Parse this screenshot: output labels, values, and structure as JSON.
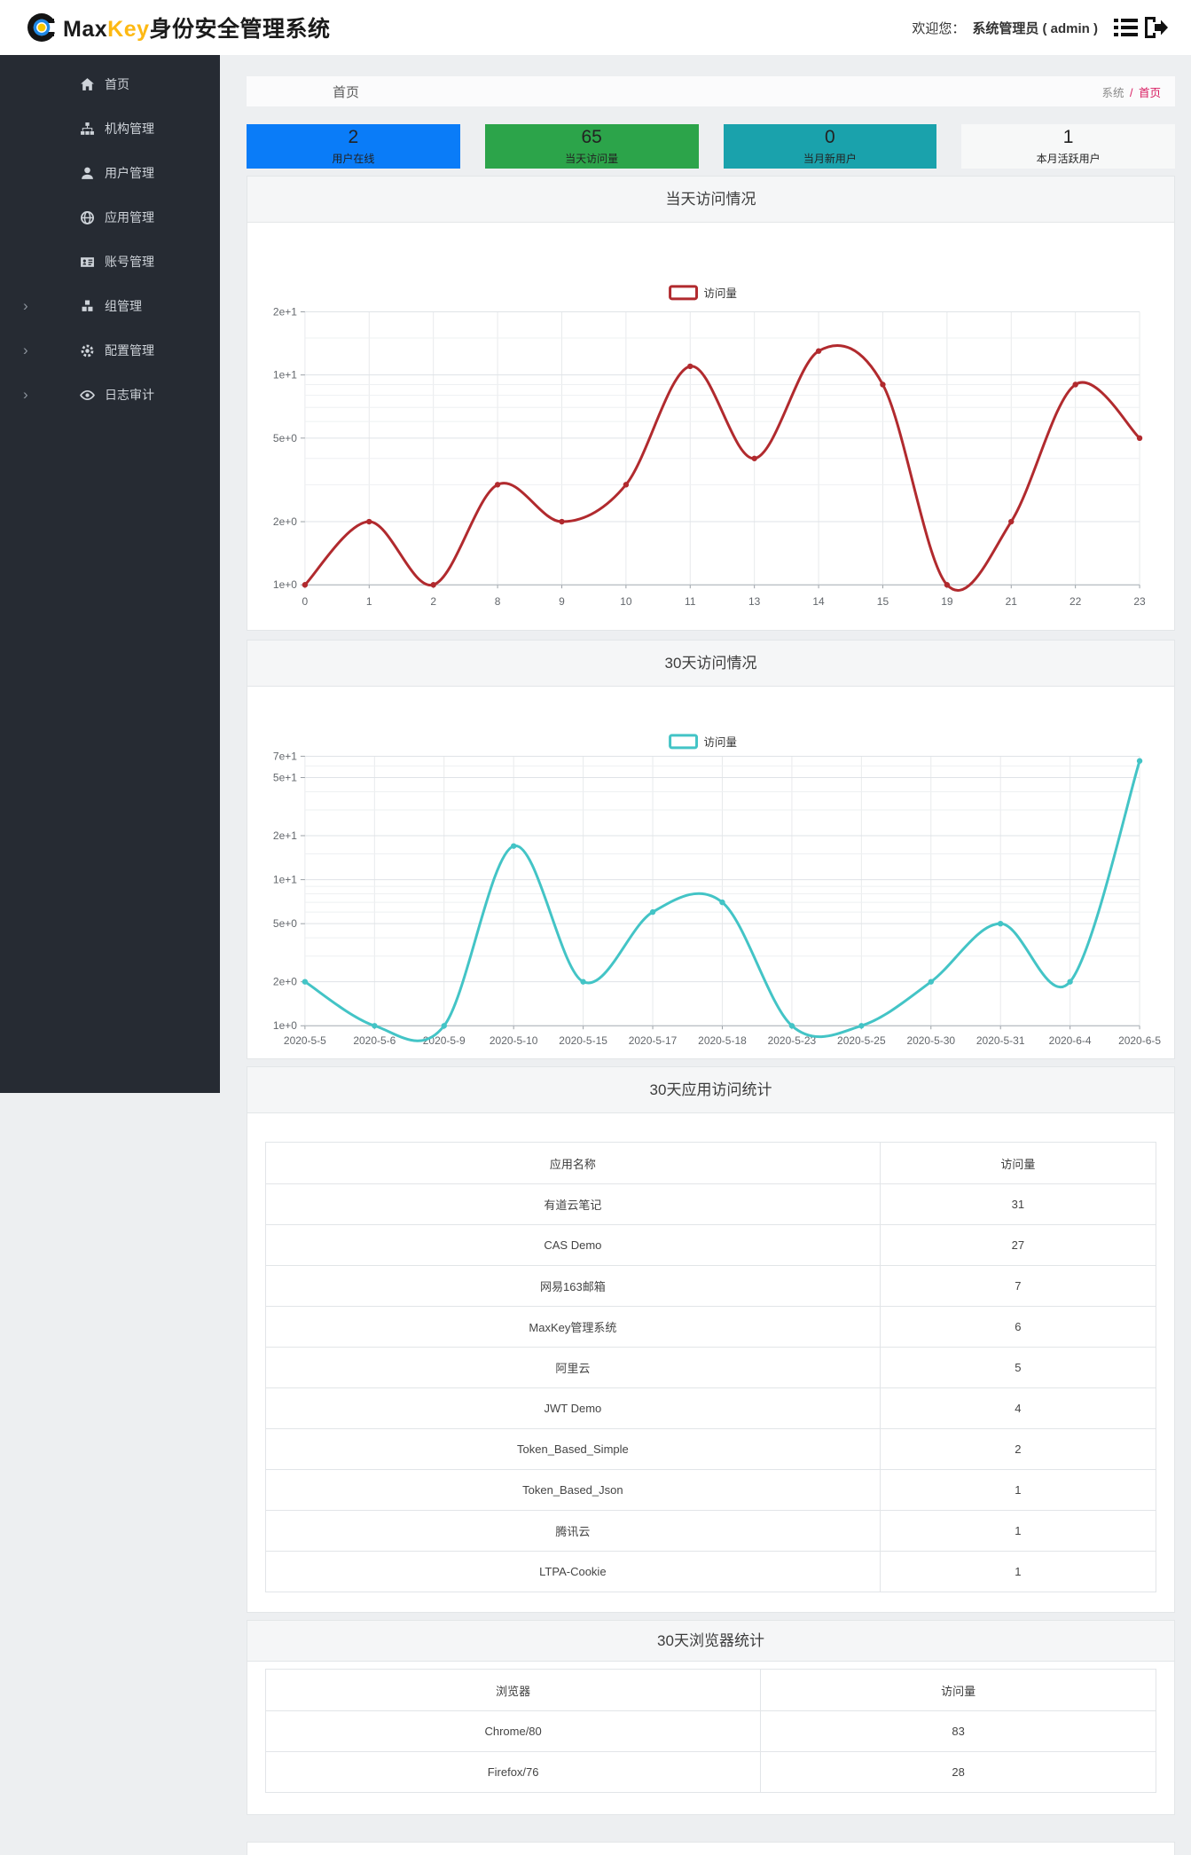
{
  "header": {
    "brand_prefix": "Max",
    "brand_mid": "Key",
    "brand_suffix": "身份安全管理系统",
    "welcome_label": "欢迎您：",
    "user": "系统管理员 ( admin )"
  },
  "sidebar": {
    "items": [
      {
        "name": "home",
        "label": "首页",
        "icon": "home-icon",
        "expandable": false
      },
      {
        "name": "org",
        "label": "机构管理",
        "icon": "sitemap-icon",
        "expandable": false
      },
      {
        "name": "user",
        "label": "用户管理",
        "icon": "user-icon",
        "expandable": false
      },
      {
        "name": "app",
        "label": "应用管理",
        "icon": "globe-icon",
        "expandable": false
      },
      {
        "name": "account",
        "label": "账号管理",
        "icon": "id-card-icon",
        "expandable": false
      },
      {
        "name": "group",
        "label": "组管理",
        "icon": "cubes-icon",
        "expandable": true
      },
      {
        "name": "config",
        "label": "配置管理",
        "icon": "gears-icon",
        "expandable": true
      },
      {
        "name": "audit",
        "label": "日志审计",
        "icon": "eye-icon",
        "expandable": true
      }
    ]
  },
  "breadcrumb": {
    "page_title": "首页",
    "root": "系统",
    "separator": "/",
    "current": "首页"
  },
  "stat_cards": [
    {
      "value": "2",
      "label": "用户在线",
      "bg": "#0a7cf8"
    },
    {
      "value": "65",
      "label": "当天访问量",
      "bg": "#2ca44a"
    },
    {
      "value": "0",
      "label": "当月新用户",
      "bg": "#1aa2ac"
    },
    {
      "value": "1",
      "label": "本月活跃用户",
      "bg": "#f7f8f8"
    }
  ],
  "chart_data": [
    {
      "type": "line",
      "title": "当天访问情况",
      "legend": "访问量",
      "color": "#b12a2e",
      "y_scale": "log",
      "ylim": [
        1,
        20
      ],
      "y_tick_labels": [
        "2e+1",
        "1e+1",
        "5e+0",
        "2e+0",
        "1e+0"
      ],
      "y_tick_values": [
        20,
        10,
        5,
        2,
        1
      ],
      "minor_ticks": [
        15,
        9,
        8,
        7,
        6,
        4,
        3
      ],
      "grid": true,
      "legend_position": "top-center",
      "categories": [
        "0",
        "1",
        "2",
        "8",
        "9",
        "10",
        "11",
        "13",
        "14",
        "15",
        "19",
        "21",
        "22",
        "23"
      ],
      "values": [
        1,
        2,
        1,
        3,
        2,
        3,
        11,
        4,
        13,
        9,
        1,
        2,
        9,
        5
      ],
      "xlabel": "",
      "ylabel": ""
    },
    {
      "type": "line",
      "title": "30天访问情况",
      "legend": "访问量",
      "color": "#43c4c6",
      "y_scale": "log",
      "ylim": [
        1,
        70
      ],
      "y_tick_labels": [
        "7e+1",
        "5e+1",
        "2e+1",
        "1e+1",
        "5e+0",
        "2e+0",
        "1e+0"
      ],
      "y_tick_values": [
        70,
        50,
        20,
        10,
        5,
        2,
        1
      ],
      "minor_ticks": [
        60,
        40,
        30,
        15,
        9,
        8,
        7,
        6,
        4,
        3
      ],
      "grid": true,
      "legend_position": "top-center",
      "categories": [
        "2020-5-5",
        "2020-5-6",
        "2020-5-9",
        "2020-5-10",
        "2020-5-15",
        "2020-5-17",
        "2020-5-18",
        "2020-5-23",
        "2020-5-25",
        "2020-5-30",
        "2020-5-31",
        "2020-6-4",
        "2020-6-5"
      ],
      "values": [
        2,
        1,
        1,
        17,
        2,
        6,
        7,
        1,
        1,
        2,
        5,
        2,
        65
      ],
      "xlabel": "",
      "ylabel": ""
    }
  ],
  "app_table": {
    "title": "30天应用访问统计",
    "headers": [
      "应用名称",
      "访问量"
    ],
    "rows": [
      [
        "有道云笔记",
        "31"
      ],
      [
        "CAS Demo",
        "27"
      ],
      [
        "网易163邮箱",
        "7"
      ],
      [
        "MaxKey管理系统",
        "6"
      ],
      [
        "阿里云",
        "5"
      ],
      [
        "JWT Demo",
        "4"
      ],
      [
        "Token_Based_Simple",
        "2"
      ],
      [
        "Token_Based_Json",
        "1"
      ],
      [
        "腾讯云",
        "1"
      ],
      [
        "LTPA-Cookie",
        "1"
      ]
    ]
  },
  "browser_table": {
    "title": "30天浏览器统计",
    "headers": [
      "浏览器",
      "访问量"
    ],
    "rows": [
      [
        "Chrome/80",
        "83"
      ],
      [
        "Firefox/76",
        "28"
      ]
    ]
  },
  "colors": {
    "accent_blue": "#0a7cf8",
    "accent_green": "#2ca44a",
    "accent_teal": "#1aa2ac",
    "breadcrumb_active": "#d81b60",
    "brand_yellow": "#fdb913",
    "chart1_line": "#b12a2e",
    "chart2_line": "#43c4c6",
    "sidebar_bg": "#262b33"
  }
}
